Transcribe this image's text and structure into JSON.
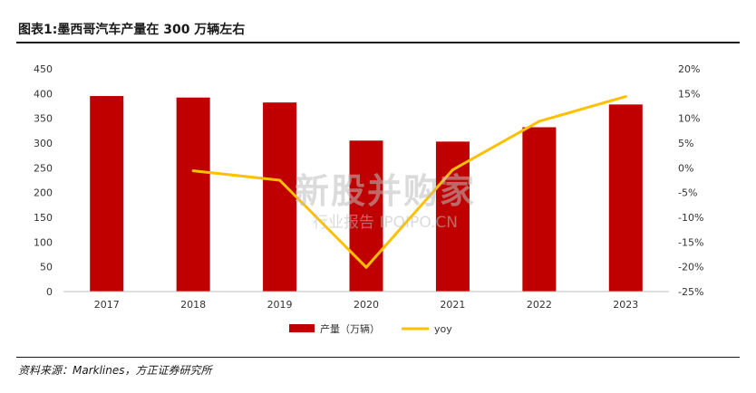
{
  "header": {
    "title": "图表1:墨西哥汽车产量在 300 万辆左右"
  },
  "footer": {
    "source": "资料来源：Marklines，方正证券研究所"
  },
  "watermark": {
    "line1": "新股并购家",
    "line2": "行业报告 IPOIPO.CN"
  },
  "chart_data": {
    "type": "bar",
    "categories": [
      "2017",
      "2018",
      "2019",
      "2020",
      "2021",
      "2022",
      "2023"
    ],
    "series": [
      {
        "name": "产量（万辆）",
        "type": "bar",
        "axis": "left",
        "values": [
          395,
          392,
          382,
          305,
          303,
          332,
          378
        ],
        "color": "#C00000"
      },
      {
        "name": "yoy",
        "type": "line",
        "axis": "right",
        "values": [
          null,
          -0.6,
          -2.5,
          -20.1,
          -0.4,
          9.4,
          14.4
        ],
        "color": "#FFC000"
      }
    ],
    "y_left": {
      "min": 0,
      "max": 450,
      "ticks": [
        "0",
        "50",
        "100",
        "150",
        "200",
        "250",
        "300",
        "350",
        "400",
        "450"
      ]
    },
    "y_right": {
      "min": -25,
      "max": 20,
      "ticks": [
        "-25%",
        "-20%",
        "-15%",
        "-10%",
        "-5%",
        "0%",
        "5%",
        "10%",
        "15%",
        "20%"
      ]
    },
    "legend_position": "bottom",
    "grid": false
  }
}
